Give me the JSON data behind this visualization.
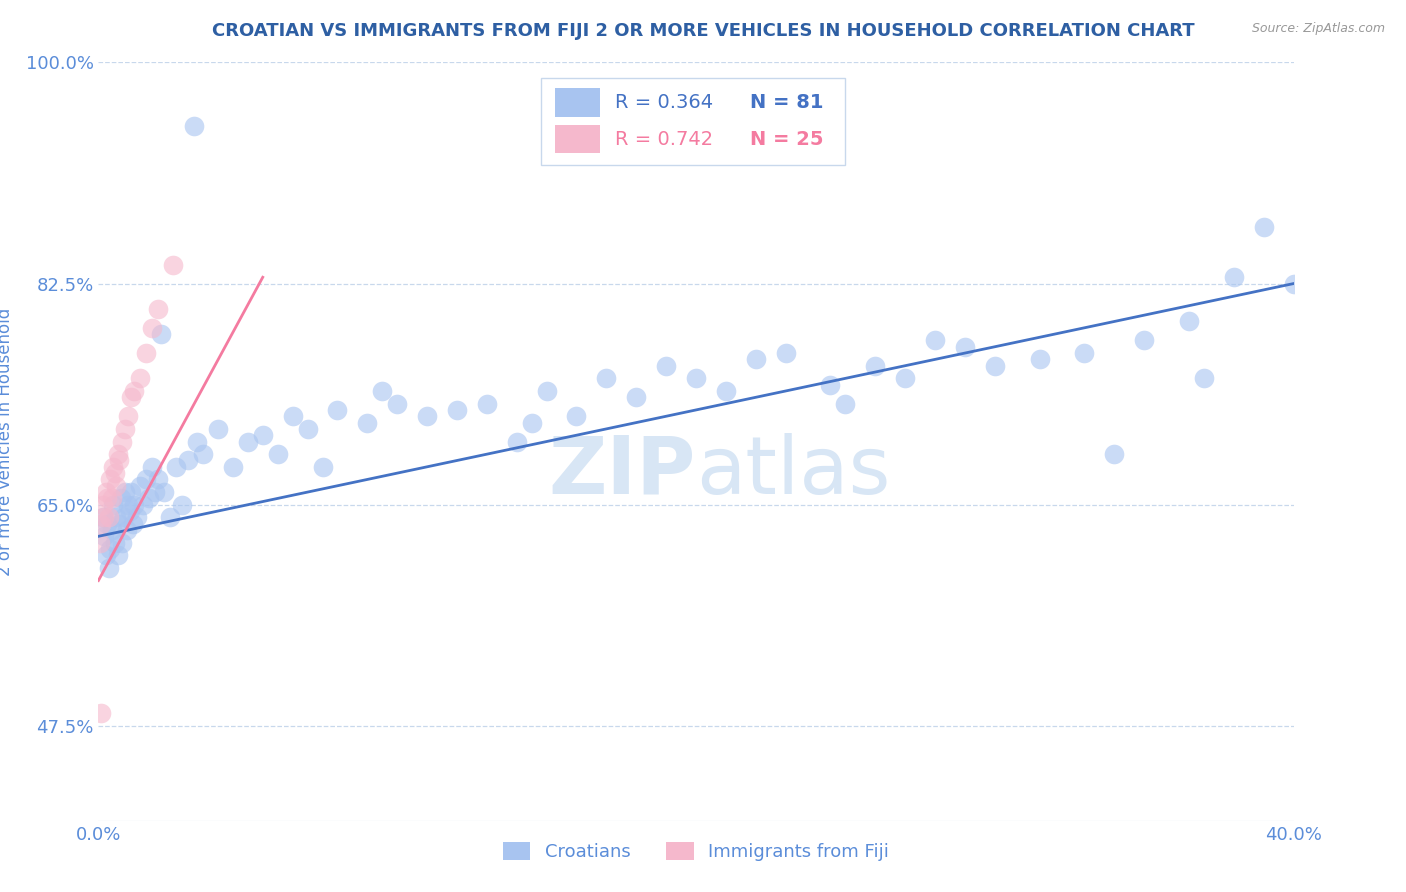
{
  "title": "CROATIAN VS IMMIGRANTS FROM FIJI 2 OR MORE VEHICLES IN HOUSEHOLD CORRELATION CHART",
  "source": "Source: ZipAtlas.com",
  "ylabel": "2 or more Vehicles in Household",
  "xlim": [
    0.0,
    40.0
  ],
  "ylim": [
    40.0,
    100.0
  ],
  "yticks": [
    47.5,
    65.0,
    82.5,
    100.0
  ],
  "ytick_labels": [
    "47.5%",
    "65.0%",
    "82.5%",
    "100.0%"
  ],
  "xtick_labels_show": [
    "0.0%",
    "40.0%"
  ],
  "legend_croatians": "Croatians",
  "legend_fiji": "Immigrants from Fiji",
  "R_croatians": 0.364,
  "N_croatians": 81,
  "R_fiji": 0.742,
  "N_fiji": 25,
  "blue_scatter_color": "#A8C4F0",
  "pink_scatter_color": "#F5B8CC",
  "blue_line_color": "#4472C4",
  "pink_line_color": "#F47BA0",
  "axis_label_color": "#5B8DD9",
  "title_color": "#2E5FA3",
  "grid_color": "#C8D8EC",
  "watermark_color": "#D8E6F5",
  "blue_line_y0": 62.5,
  "blue_line_y1": 82.5,
  "pink_line_x0": 0.0,
  "pink_line_y0": 59.0,
  "pink_line_x1": 5.5,
  "pink_line_y1": 83.0,
  "croatians_x": [
    0.15,
    0.2,
    0.25,
    0.3,
    0.35,
    0.4,
    0.45,
    0.5,
    0.55,
    0.6,
    0.65,
    0.7,
    0.75,
    0.8,
    0.85,
    0.9,
    0.95,
    1.0,
    1.05,
    1.1,
    1.15,
    1.2,
    1.3,
    1.4,
    1.5,
    1.6,
    1.7,
    1.8,
    1.9,
    2.0,
    2.2,
    2.4,
    2.6,
    2.8,
    3.0,
    3.3,
    3.5,
    4.0,
    4.5,
    5.0,
    5.5,
    6.0,
    6.5,
    7.0,
    7.5,
    8.0,
    9.0,
    9.5,
    10.0,
    11.0,
    12.0,
    13.0,
    14.0,
    14.5,
    15.0,
    16.0,
    17.0,
    18.0,
    19.0,
    20.0,
    21.0,
    22.0,
    23.0,
    24.5,
    25.0,
    26.0,
    27.0,
    28.0,
    29.0,
    30.0,
    31.5,
    33.0,
    34.0,
    35.0,
    36.5,
    37.0,
    38.0,
    39.0,
    40.0,
    3.2,
    2.1
  ],
  "croatians_y": [
    64.0,
    62.5,
    61.0,
    63.5,
    60.0,
    61.5,
    63.0,
    65.0,
    62.0,
    64.0,
    61.0,
    63.5,
    65.5,
    62.0,
    64.0,
    66.0,
    63.0,
    65.0,
    64.5,
    66.0,
    63.5,
    65.0,
    64.0,
    66.5,
    65.0,
    67.0,
    65.5,
    68.0,
    66.0,
    67.0,
    66.0,
    64.0,
    68.0,
    65.0,
    68.5,
    70.0,
    69.0,
    71.0,
    68.0,
    70.0,
    70.5,
    69.0,
    72.0,
    71.0,
    68.0,
    72.5,
    71.5,
    74.0,
    73.0,
    72.0,
    72.5,
    73.0,
    70.0,
    71.5,
    74.0,
    72.0,
    75.0,
    73.5,
    76.0,
    75.0,
    74.0,
    76.5,
    77.0,
    74.5,
    73.0,
    76.0,
    75.0,
    78.0,
    77.5,
    76.0,
    76.5,
    77.0,
    69.0,
    78.0,
    79.5,
    75.0,
    83.0,
    87.0,
    82.5,
    95.0,
    78.5
  ],
  "fiji_x": [
    0.05,
    0.1,
    0.15,
    0.2,
    0.25,
    0.3,
    0.35,
    0.4,
    0.45,
    0.5,
    0.55,
    0.6,
    0.65,
    0.7,
    0.8,
    0.9,
    1.0,
    1.1,
    1.2,
    1.4,
    1.6,
    1.8,
    2.0,
    2.5,
    0.08
  ],
  "fiji_y": [
    62.0,
    63.5,
    65.0,
    64.0,
    66.0,
    65.5,
    64.0,
    67.0,
    65.5,
    68.0,
    67.5,
    66.5,
    69.0,
    68.5,
    70.0,
    71.0,
    72.0,
    73.5,
    74.0,
    75.0,
    77.0,
    79.0,
    80.5,
    84.0,
    48.5
  ]
}
